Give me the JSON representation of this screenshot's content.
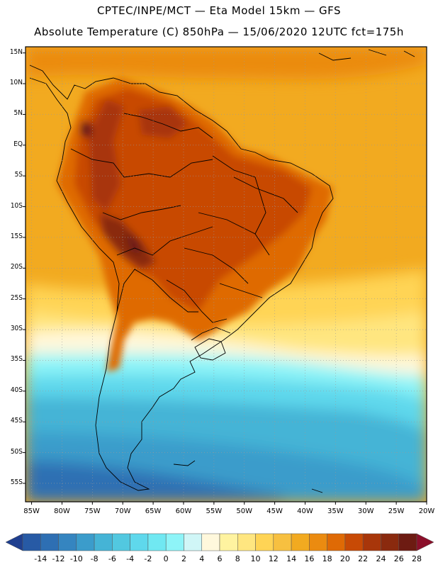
{
  "header": {
    "line1": "CPTEC/INPE/MCT —  Eta Model 15km — GFS",
    "line2": "Absolute Temperature (C) 850hPa — 15/06/2020 12UTC fct=175h"
  },
  "map": {
    "lat_labels": [
      "15N",
      "10N",
      "5N",
      "EQ",
      "5S",
      "10S",
      "15S",
      "20S",
      "25S",
      "30S",
      "35S",
      "40S",
      "45S",
      "50S",
      "55S"
    ],
    "lon_labels": [
      "85W",
      "80W",
      "75W",
      "70W",
      "65W",
      "60W",
      "55W",
      "50W",
      "45W",
      "40W",
      "35W",
      "30W",
      "25W",
      "20W"
    ],
    "lat_range": [
      -58,
      16
    ],
    "lon_range": [
      -86,
      -20
    ]
  },
  "colorbar": {
    "labels": [
      "-14",
      "-12",
      "-10",
      "-8",
      "-6",
      "-4",
      "-2",
      "0",
      "2",
      "4",
      "6",
      "8",
      "10",
      "12",
      "14",
      "16",
      "18",
      "20",
      "22",
      "24",
      "26",
      "28"
    ],
    "colors": [
      "#1f3f8f",
      "#275aa5",
      "#2e6fb3",
      "#3585c0",
      "#3b9ccb",
      "#45b4d6",
      "#52c8e0",
      "#5fd8ec",
      "#70e8f2",
      "#8ef4f8",
      "#d0f6f7",
      "#fff8dc",
      "#fff3a0",
      "#ffe680",
      "#ffd455",
      "#f7c040",
      "#f2aa20",
      "#eb8b10",
      "#df6a05",
      "#c84a05",
      "#a8360a",
      "#8a2a0e",
      "#6d1b12",
      "#8b0f2a"
    ]
  }
}
